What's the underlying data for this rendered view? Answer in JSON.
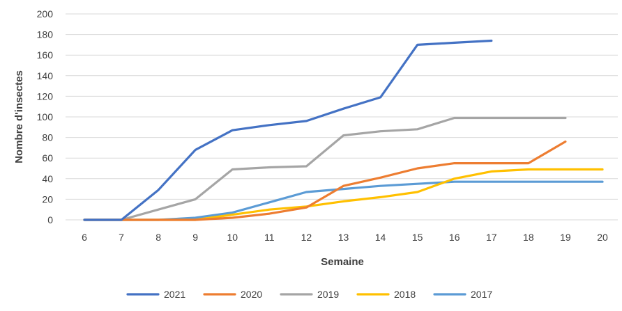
{
  "chart_data": {
    "type": "line",
    "title": "",
    "xlabel": "Semaine",
    "ylabel": "Nombre d'insectes",
    "x": [
      6,
      7,
      8,
      9,
      10,
      11,
      12,
      13,
      14,
      15,
      16,
      17,
      18,
      19,
      20
    ],
    "ylim": [
      0,
      200
    ],
    "ytick_step": 20,
    "grid": true,
    "legend_position": "bottom",
    "series": [
      {
        "name": "2021",
        "color": "#4472C4",
        "values": [
          0,
          0,
          29,
          68,
          87,
          92,
          96,
          108,
          119,
          170,
          172,
          174,
          null,
          null,
          null
        ]
      },
      {
        "name": "2020",
        "color": "#ED7D31",
        "values": [
          0,
          0,
          0,
          0,
          2,
          6,
          12,
          33,
          41,
          50,
          55,
          55,
          55,
          76,
          null
        ]
      },
      {
        "name": "2019",
        "color": "#A5A5A5",
        "values": [
          0,
          0,
          10,
          20,
          49,
          51,
          52,
          82,
          86,
          88,
          99,
          99,
          99,
          99,
          null
        ]
      },
      {
        "name": "2018",
        "color": "#FFC000",
        "values": [
          0,
          0,
          0,
          0,
          5,
          10,
          13,
          18,
          22,
          27,
          40,
          47,
          49,
          49,
          49
        ]
      },
      {
        "name": "2017",
        "color": "#5B9BD5",
        "values": [
          0,
          0,
          0,
          2,
          7,
          17,
          27,
          30,
          33,
          35,
          37,
          37,
          37,
          37,
          37
        ]
      }
    ]
  }
}
